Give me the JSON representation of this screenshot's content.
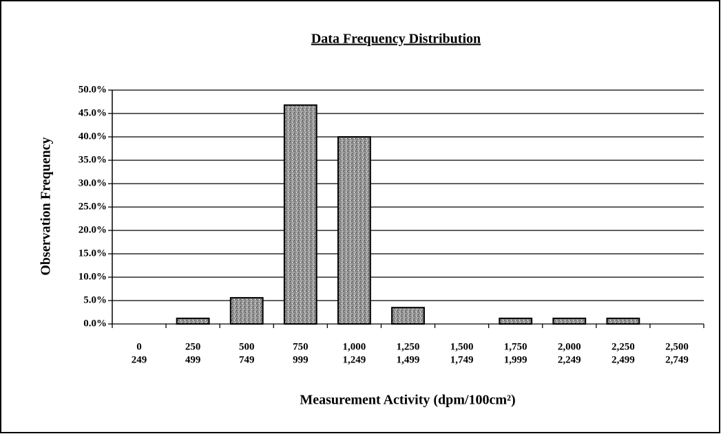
{
  "chart_data": {
    "type": "bar",
    "title": "Data Frequency Distribution",
    "ylabel": "Observation Frequency",
    "xlabel": "Measurement Activity (dpm/100cm²)",
    "categories": [
      [
        "0",
        "249"
      ],
      [
        "250",
        "499"
      ],
      [
        "500",
        "749"
      ],
      [
        "750",
        "999"
      ],
      [
        "1,000",
        "1,249"
      ],
      [
        "1,250",
        "1,499"
      ],
      [
        "1,500",
        "1,749"
      ],
      [
        "1,750",
        "1,999"
      ],
      [
        "2,000",
        "2,249"
      ],
      [
        "2,250",
        "2,499"
      ],
      [
        "2,500",
        "2,749"
      ]
    ],
    "values": [
      0,
      1.2,
      5.6,
      46.8,
      40.0,
      3.5,
      0,
      1.2,
      1.2,
      1.2,
      0
    ],
    "color": "#9a9a9a",
    "ylim": [
      0,
      50
    ],
    "yticks": [
      {
        "value": 0,
        "label": "0.0%"
      },
      {
        "value": 5,
        "label": "5.0%"
      },
      {
        "value": 10,
        "label": "10.0%"
      },
      {
        "value": 15,
        "label": "15.0%"
      },
      {
        "value": 20,
        "label": "20.0%"
      },
      {
        "value": 25,
        "label": "25.0%"
      },
      {
        "value": 30,
        "label": "30.0%"
      },
      {
        "value": 35,
        "label": "35.0%"
      },
      {
        "value": 40,
        "label": "40.0%"
      },
      {
        "value": 45,
        "label": "45.0%"
      },
      {
        "value": 50,
        "label": "50.0%"
      }
    ],
    "grid": true
  }
}
